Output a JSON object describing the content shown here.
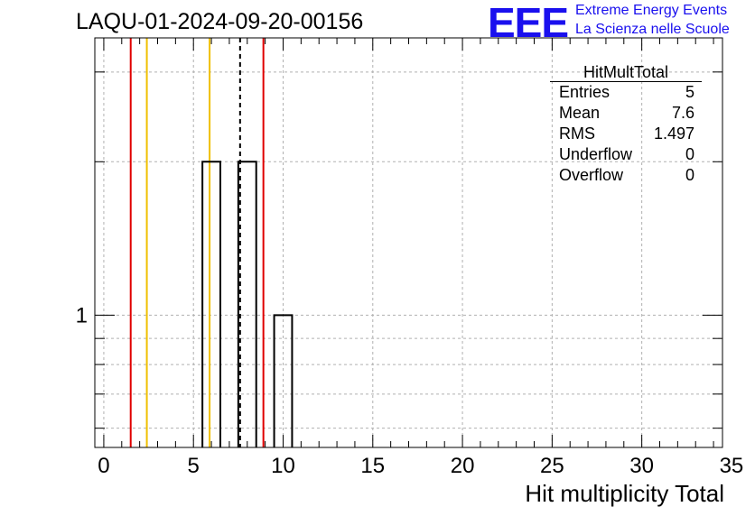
{
  "title": "LAQU-01-2024-09-20-00156",
  "logo": {
    "mark": "EEE",
    "line1": "Extreme Energy Events",
    "line2": "La Scienza nelle Scuole",
    "color": "#1a10ee"
  },
  "stats": {
    "title": "HitMultTotal",
    "rows": [
      {
        "label": "Entries",
        "value": "5"
      },
      {
        "label": "Mean",
        "value": "7.6"
      },
      {
        "label": "RMS",
        "value": "1.497"
      },
      {
        "label": "Underflow",
        "value": "0"
      },
      {
        "label": "Overflow",
        "value": "0"
      }
    ]
  },
  "chart_data": {
    "type": "bar",
    "xlabel": "Hit multiplicity Total",
    "ylabel": "",
    "xlim": [
      -0.5,
      34.5
    ],
    "ylim": [
      0.55,
      3.5
    ],
    "y_scale": "log",
    "grid": true,
    "x_ticks": [
      "0",
      "5",
      "10",
      "15",
      "20",
      "25",
      "30",
      "35"
    ],
    "y_ticks": [
      "1"
    ],
    "bin_width": 1,
    "bins": [
      {
        "x": 6,
        "value": 2
      },
      {
        "x": 8,
        "value": 2
      },
      {
        "x": 10,
        "value": 1
      }
    ],
    "vertical_lines": [
      {
        "x": 1.5,
        "color": "#e00000",
        "style": "solid"
      },
      {
        "x": 2.4,
        "color": "#f0c000",
        "style": "solid"
      },
      {
        "x": 5.9,
        "color": "#f0c000",
        "style": "solid"
      },
      {
        "x": 7.6,
        "color": "#000000",
        "style": "dashed"
      },
      {
        "x": 8.9,
        "color": "#e00000",
        "style": "solid"
      }
    ]
  }
}
